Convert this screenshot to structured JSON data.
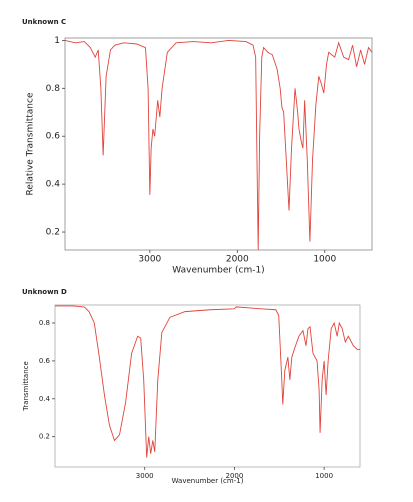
{
  "chart_data": [
    {
      "type": "line",
      "title": "Unknown C",
      "xlabel": "Wavenumber (cm-1)",
      "ylabel": "Relative Transmittance",
      "color": "#e0443c",
      "xlim": [
        3970,
        460
      ],
      "ylim": [
        0.125,
        1.01
      ],
      "xticks": [
        3000,
        2000,
        1000
      ],
      "yticks": [
        0.2,
        0.4,
        0.6,
        0.8,
        1
      ],
      "x": [
        3970,
        3850,
        3750,
        3680,
        3625,
        3590,
        3560,
        3534,
        3500,
        3450,
        3400,
        3300,
        3150,
        3050,
        3020,
        3000,
        2985,
        2965,
        2945,
        2910,
        2886,
        2860,
        2800,
        2700,
        2500,
        2300,
        2100,
        1900,
        1820,
        1790,
        1775,
        1761,
        1745,
        1720,
        1700,
        1650,
        1600,
        1545,
        1510,
        1490,
        1470,
        1440,
        1409,
        1380,
        1340,
        1310,
        1295,
        1270,
        1250,
        1230,
        1200,
        1170,
        1140,
        1102,
        1068,
        1040,
        1011,
        980,
        955,
        886,
        841,
        784,
        727,
        682,
        636,
        590,
        545,
        500,
        460
      ],
      "values": [
        1.0,
        0.99,
        0.995,
        0.97,
        0.93,
        0.96,
        0.8,
        0.52,
        0.85,
        0.96,
        0.98,
        0.99,
        0.985,
        0.97,
        0.8,
        0.355,
        0.55,
        0.63,
        0.6,
        0.75,
        0.68,
        0.8,
        0.95,
        0.99,
        0.995,
        0.99,
        1.0,
        0.995,
        0.98,
        0.93,
        0.5,
        0.125,
        0.6,
        0.93,
        0.97,
        0.95,
        0.94,
        0.88,
        0.8,
        0.72,
        0.7,
        0.5,
        0.29,
        0.55,
        0.8,
        0.7,
        0.63,
        0.58,
        0.55,
        0.75,
        0.5,
        0.16,
        0.5,
        0.73,
        0.85,
        0.82,
        0.78,
        0.9,
        0.95,
        0.93,
        0.99,
        0.93,
        0.92,
        0.98,
        0.89,
        0.96,
        0.9,
        0.97,
        0.95
      ]
    },
    {
      "type": "line",
      "title": "Unknown D",
      "xlabel": "Wavenumber (cm-1)",
      "ylabel": "Transmittance",
      "color": "#e0443c",
      "xlim": [
        4000,
        600
      ],
      "ylim": [
        0.04,
        0.895
      ],
      "xticks": [
        3000,
        2000,
        1000
      ],
      "yticks": [
        0.2,
        0.4,
        0.6,
        0.8
      ],
      "x": [
        4000,
        3800,
        3674,
        3620,
        3562,
        3506,
        3449,
        3393,
        3337,
        3281,
        3213,
        3146,
        3079,
        3045,
        3011,
        2978,
        2955,
        2933,
        2910,
        2888,
        2854,
        2809,
        2719,
        2551,
        2270,
        2000,
        1980,
        1708,
        1539,
        1506,
        1472,
        1461,
        1438,
        1404,
        1382,
        1360,
        1326,
        1281,
        1236,
        1202,
        1180,
        1157,
        1124,
        1079,
        1056,
        1045,
        1022,
        1000,
        978,
        955,
        921,
        888,
        854,
        831,
        798,
        764,
        730,
        674,
        629,
        600
      ],
      "values": [
        0.89,
        0.89,
        0.885,
        0.86,
        0.8,
        0.62,
        0.42,
        0.26,
        0.18,
        0.21,
        0.38,
        0.64,
        0.73,
        0.72,
        0.5,
        0.09,
        0.2,
        0.11,
        0.18,
        0.12,
        0.5,
        0.75,
        0.83,
        0.86,
        0.87,
        0.875,
        0.885,
        0.875,
        0.87,
        0.84,
        0.5,
        0.37,
        0.55,
        0.62,
        0.5,
        0.62,
        0.67,
        0.73,
        0.76,
        0.68,
        0.77,
        0.78,
        0.64,
        0.6,
        0.45,
        0.22,
        0.5,
        0.6,
        0.42,
        0.6,
        0.77,
        0.8,
        0.73,
        0.8,
        0.77,
        0.7,
        0.73,
        0.68,
        0.66,
        0.66
      ]
    }
  ]
}
